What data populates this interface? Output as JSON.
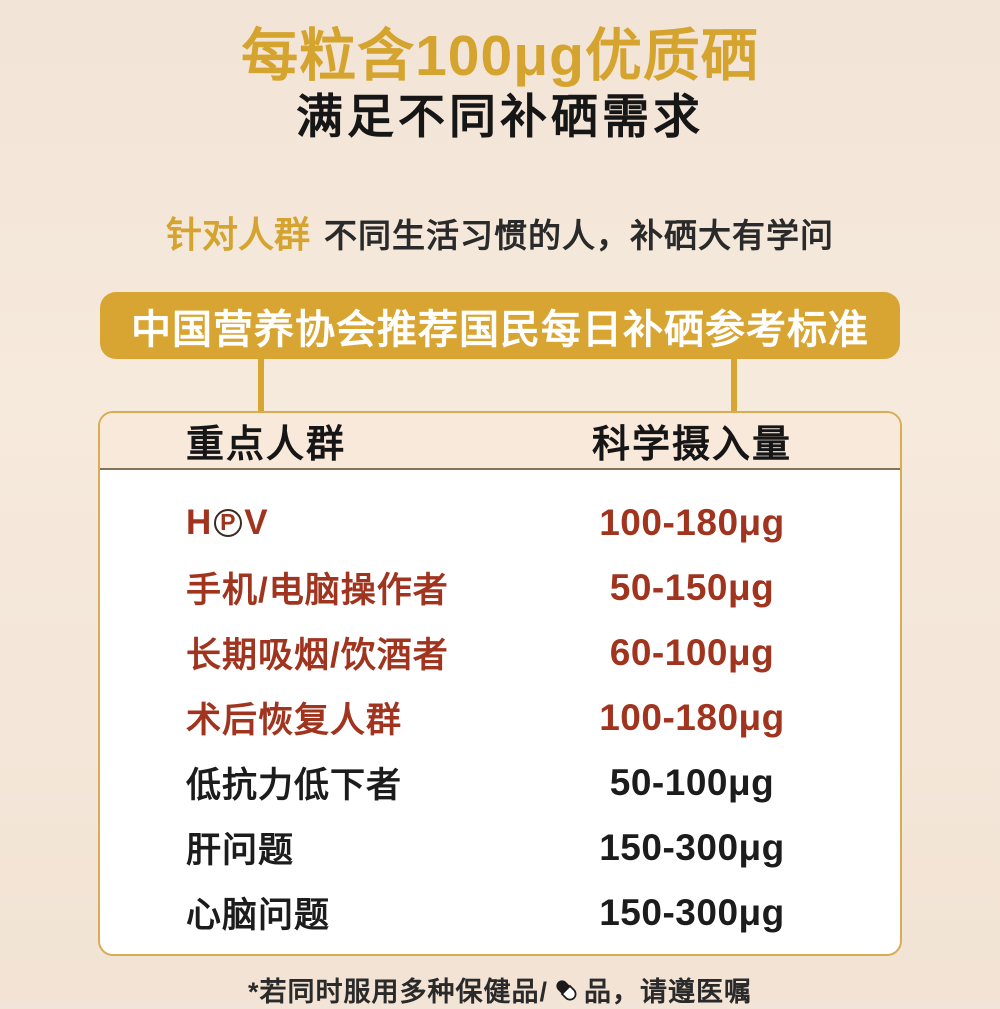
{
  "header": {
    "title": "每粒含100μg优质硒",
    "subtitle": "满足不同补硒需求",
    "tagline_label": "针对人群",
    "tagline_text": "不同生活习惯的人，补硒大有学问",
    "banner": "中国营养协会推荐国民每日补硒参考标准"
  },
  "colors": {
    "gold": "#D5A42F",
    "banner_bg": "#D9A532",
    "highlight_red": "#A0341F",
    "text_black": "#1C1C1C",
    "page_bg": "#F3E5D7",
    "panel_border": "#D9AC53",
    "table_header_bg": "#F8E9DB"
  },
  "table": {
    "headers": [
      "重点人群",
      "科学摄入量"
    ],
    "rows": [
      {
        "style": "red",
        "group_parts": [
          {
            "t": "H"
          },
          {
            "t": "P",
            "circled": true
          },
          {
            "t": "V"
          }
        ],
        "intake": "100-180μg"
      },
      {
        "style": "red",
        "group_parts": [
          {
            "t": "手机/电脑操作者"
          }
        ],
        "intake": "50-150μg"
      },
      {
        "style": "red",
        "group_parts": [
          {
            "t": "长期吸烟/饮酒者"
          }
        ],
        "intake": "60-100μg"
      },
      {
        "style": "red",
        "group_parts": [
          {
            "t": "术后恢复人群"
          }
        ],
        "intake": "100-180μg"
      },
      {
        "style": "dark",
        "group_parts": [
          {
            "t": "低抗力低下者"
          }
        ],
        "intake": "50-100μg"
      },
      {
        "style": "dark",
        "group_parts": [
          {
            "t": "肝问题"
          }
        ],
        "intake": "150-300μg"
      },
      {
        "style": "dark",
        "group_parts": [
          {
            "t": "心脑问题"
          }
        ],
        "intake": "150-300μg"
      }
    ]
  },
  "footer": {
    "prefix": "*若同时服用多种保健品/",
    "icon": "capsule-icon",
    "suffix": "品，请遵医嘱"
  }
}
